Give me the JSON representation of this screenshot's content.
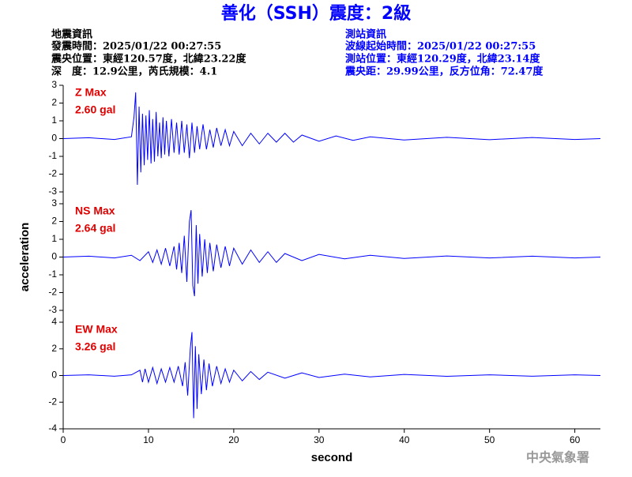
{
  "header": {
    "title": "善化（SSH）震度：2級",
    "left": [
      "地震資訊",
      "發震時間：2025/01/22 00:27:55",
      "震央位置：東經120.57度，北緯23.22度",
      "深　度：12.9公里，芮氏規模：4.1"
    ],
    "right": [
      "測站資訊",
      "波線起始時間：2025/01/22 00:27:55",
      "測站位置：東經120.29度，北緯23.14度",
      "震央距：29.99公里，反方位角：72.47度"
    ],
    "watermark": "中央氣象署"
  },
  "chart_data": [
    {
      "type": "line",
      "annotation": [
        "Z Max",
        "2.60 gal"
      ],
      "xlim": [
        0,
        63
      ],
      "ylim": [
        -3,
        3
      ],
      "yticks": [
        -3,
        -2,
        -1,
        0,
        1,
        2,
        3
      ],
      "series": [
        {
          "color": "#0000ff",
          "x": [
            0,
            3,
            6,
            8,
            8.3,
            8.5,
            8.7,
            8.9,
            9.1,
            9.3,
            9.5,
            9.7,
            9.9,
            10.1,
            10.3,
            10.5,
            10.7,
            10.9,
            11.1,
            11.3,
            11.5,
            11.7,
            11.9,
            12.1,
            12.4,
            12.7,
            13,
            13.3,
            13.6,
            13.9,
            14.2,
            14.5,
            14.8,
            15.1,
            15.4,
            15.7,
            16,
            16.4,
            16.8,
            17.2,
            17.6,
            18,
            18.5,
            19,
            19.5,
            20,
            21,
            22,
            23,
            24,
            25,
            26,
            27,
            28,
            30,
            32,
            34,
            36,
            40,
            45,
            50,
            55,
            60,
            63
          ],
          "values": [
            0,
            0.05,
            -0.05,
            0.1,
            1.2,
            2.6,
            -2.6,
            1.8,
            -1.9,
            1.4,
            -1.5,
            1.3,
            -1.2,
            1.6,
            -1.4,
            1.1,
            -1.3,
            1.5,
            -1.0,
            0.9,
            -1.1,
            1.2,
            -0.9,
            1.0,
            -1.0,
            1.1,
            -0.8,
            0.9,
            -0.9,
            1.0,
            -0.8,
            0.8,
            -1.1,
            0.9,
            -0.8,
            0.7,
            -0.6,
            0.8,
            -0.6,
            0.5,
            -0.5,
            0.6,
            -0.4,
            0.5,
            -0.4,
            0.4,
            -0.4,
            0.3,
            -0.3,
            0.3,
            -0.2,
            0.3,
            -0.2,
            0.2,
            -0.15,
            0.15,
            -0.1,
            0.1,
            -0.08,
            0.07,
            -0.06,
            0.06,
            -0.05,
            0
          ]
        }
      ]
    },
    {
      "type": "line",
      "annotation": [
        "NS Max",
        "2.64 gal"
      ],
      "ylabel": "acceleration",
      "xlim": [
        0,
        63
      ],
      "ylim": [
        -3,
        3
      ],
      "yticks": [
        -3,
        -2,
        -1,
        0,
        1,
        2,
        3
      ],
      "series": [
        {
          "color": "#0000ff",
          "x": [
            0,
            3,
            6,
            8,
            9,
            10,
            10.5,
            11,
            11.5,
            12,
            12.5,
            13,
            13.3,
            13.6,
            13.9,
            14.2,
            14.5,
            14.8,
            15,
            15.2,
            15.4,
            15.6,
            15.8,
            16,
            16.3,
            16.6,
            16.9,
            17.2,
            17.6,
            18,
            18.5,
            19,
            19.5,
            20,
            21,
            22,
            23,
            24,
            25,
            26,
            28,
            30,
            33,
            36,
            40,
            45,
            50,
            55,
            60,
            63
          ],
          "values": [
            0,
            0.05,
            -0.05,
            0.1,
            -0.2,
            0.3,
            -0.3,
            0.4,
            -0.4,
            0.5,
            -0.5,
            0.6,
            -0.7,
            0.8,
            -0.9,
            1.2,
            -1.4,
            2.0,
            2.64,
            -1.6,
            -2.2,
            1.8,
            -1.5,
            1.3,
            -1.1,
            1.0,
            -0.9,
            0.8,
            -0.8,
            0.7,
            -0.6,
            0.6,
            -0.5,
            0.5,
            -0.4,
            0.4,
            -0.3,
            0.3,
            -0.3,
            0.2,
            -0.2,
            0.15,
            -0.1,
            0.1,
            -0.08,
            0.06,
            -0.05,
            0.05,
            -0.05,
            0
          ]
        }
      ]
    },
    {
      "type": "line",
      "annotation": [
        "EW Max",
        "3.26 gal"
      ],
      "xlabel": "second",
      "xlim": [
        0,
        63
      ],
      "xticks": [
        0,
        10,
        20,
        30,
        40,
        50,
        60
      ],
      "ylim": [
        -4,
        4
      ],
      "yticks": [
        -4,
        -2,
        0,
        2,
        4
      ],
      "series": [
        {
          "color": "#0000ff",
          "x": [
            0,
            3,
            6,
            8,
            9,
            9.3,
            9.6,
            10,
            10.5,
            11,
            11.5,
            12,
            12.5,
            13,
            13.5,
            14,
            14.3,
            14.6,
            14.9,
            15.1,
            15.3,
            15.5,
            15.7,
            15.9,
            16.2,
            16.5,
            16.8,
            17.1,
            17.5,
            18,
            18.5,
            19,
            19.5,
            20,
            21,
            22,
            23,
            24,
            26,
            28,
            30,
            33,
            36,
            40,
            45,
            50,
            55,
            60,
            63
          ],
          "values": [
            0,
            0.05,
            -0.05,
            0.05,
            0.4,
            -0.5,
            0.5,
            -0.5,
            0.6,
            -0.6,
            0.5,
            -0.5,
            0.6,
            -0.5,
            0.7,
            -0.8,
            1.0,
            -1.5,
            2.0,
            3.26,
            -3.2,
            2.2,
            -2.5,
            1.6,
            -1.4,
            1.2,
            -1.1,
            0.9,
            -0.8,
            0.7,
            -0.6,
            0.5,
            -0.5,
            0.4,
            -0.4,
            0.3,
            -0.3,
            0.25,
            -0.2,
            0.2,
            -0.15,
            0.1,
            -0.1,
            0.08,
            -0.06,
            0.05,
            -0.05,
            0.05,
            0
          ]
        }
      ]
    }
  ]
}
